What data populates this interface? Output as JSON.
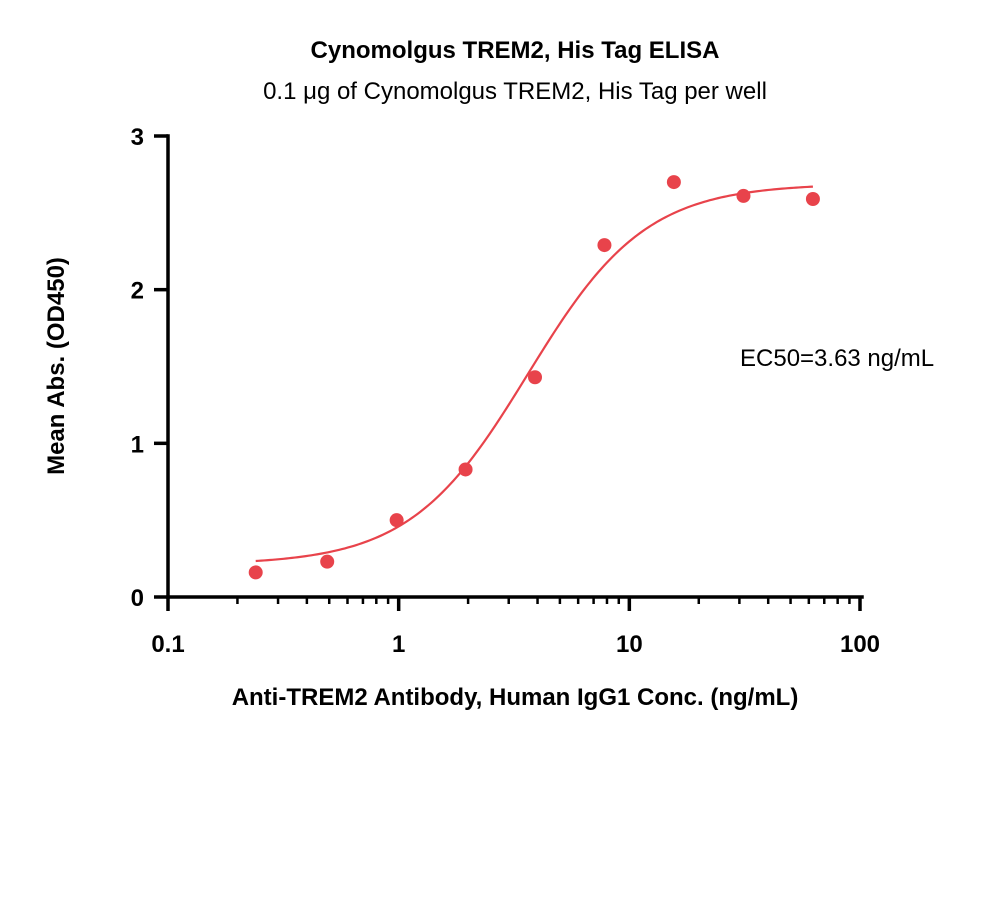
{
  "chart_data": {
    "type": "scatter",
    "title": "Cynomolgus TREM2, His Tag ELISA",
    "subtitle": "0.1 μg of Cynomolgus TREM2, His Tag per well",
    "xlabel": "Anti-TREM2 Antibody, Human IgG1 Conc. (ng/mL)",
    "ylabel": "Mean Abs. (OD450)",
    "x_scale": "log",
    "xlim": [
      0.1,
      100
    ],
    "ylim": [
      0,
      3
    ],
    "x_ticks": [
      0.1,
      1,
      10,
      100
    ],
    "x_tick_labels": [
      "0.1",
      "1",
      "10",
      "100"
    ],
    "y_ticks": [
      0,
      1,
      2,
      3
    ],
    "y_tick_labels": [
      "0",
      "1",
      "2",
      "3"
    ],
    "grid": false,
    "legend": "none",
    "annotation": "EC50=3.63 ng/mL",
    "color": "#e8434b",
    "series": [
      {
        "x": [
          0.24,
          0.49,
          0.98,
          1.95,
          3.9,
          7.8,
          15.6,
          31.25,
          62.5
        ],
        "y": [
          0.16,
          0.23,
          0.5,
          0.83,
          1.43,
          2.29,
          2.7,
          2.61,
          2.59
        ]
      }
    ],
    "fit": {
      "type": "4PL",
      "bottom": 0.21,
      "top": 2.69,
      "ec50": 3.63,
      "hill": 1.7,
      "x_range": [
        0.24,
        62.5
      ]
    }
  }
}
